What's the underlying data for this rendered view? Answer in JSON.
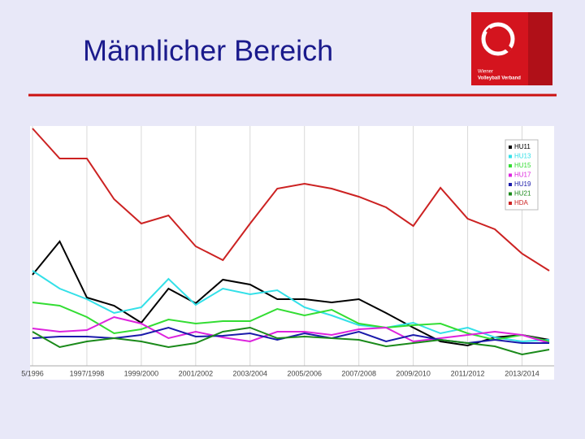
{
  "slide_title": "Männlicher Bereich",
  "logo": {
    "line1": "Wiener",
    "line2": "Volleyball Verband"
  },
  "chart_data": {
    "type": "line",
    "categories": [
      "5/1996",
      null,
      "1997/1998",
      null,
      "1999/2000",
      null,
      "2001/2002",
      null,
      "2003/2004",
      null,
      "2005/2006",
      null,
      "2007/2008",
      null,
      "2009/2010",
      null,
      "2011/2012",
      null,
      "2013/2014",
      null
    ],
    "ylim": [
      0,
      295
    ],
    "grid": true,
    "legend": "top-right",
    "series": [
      {
        "name": "HU11",
        "color": "#000000",
        "values": [
          112,
          153,
          84,
          74,
          53,
          95,
          77,
          106,
          100,
          82,
          82,
          78,
          82,
          65,
          47,
          30,
          25,
          35,
          38,
          32
        ]
      },
      {
        "name": "HU13",
        "color": "#33e0e8",
        "values": [
          117,
          95,
          82,
          65,
          72,
          107,
          75,
          95,
          88,
          93,
          72,
          62,
          50,
          47,
          53,
          40,
          47,
          35,
          30,
          32
        ]
      },
      {
        "name": "HU15",
        "color": "#33dd33",
        "values": [
          78,
          74,
          60,
          40,
          45,
          57,
          52,
          55,
          55,
          70,
          62,
          69,
          52,
          47,
          50,
          52,
          40,
          32,
          38,
          30
        ]
      },
      {
        "name": "HU17",
        "color": "#dd22dd",
        "values": [
          46,
          42,
          44,
          60,
          52,
          34,
          42,
          35,
          30,
          42,
          42,
          38,
          45,
          47,
          30,
          34,
          38,
          42,
          38,
          28
        ]
      },
      {
        "name": "HU19",
        "color": "#1a1aaa",
        "values": [
          34,
          36,
          36,
          34,
          38,
          47,
          36,
          37,
          40,
          32,
          40,
          34,
          42,
          30,
          38,
          32,
          28,
          32,
          28,
          28
        ]
      },
      {
        "name": "HU21",
        "color": "#1a8a1a",
        "values": [
          42,
          23,
          30,
          34,
          30,
          23,
          28,
          42,
          47,
          34,
          36,
          34,
          32,
          24,
          28,
          32,
          28,
          24,
          14,
          20
        ]
      },
      {
        "name": "HDA",
        "color": "#cc2222",
        "values": [
          292,
          255,
          255,
          205,
          175,
          185,
          147,
          130,
          175,
          218,
          224,
          218,
          208,
          195,
          172,
          219,
          181,
          168,
          138,
          117
        ]
      }
    ]
  }
}
